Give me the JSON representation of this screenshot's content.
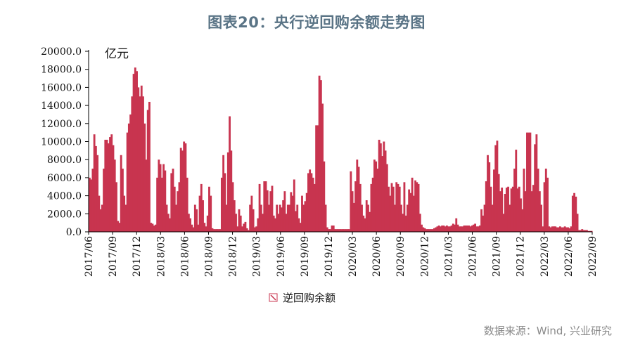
{
  "title": "图表20：央行逆回购余额走势图",
  "source": "数据来源：Wind, 兴业研究",
  "chart_data": {
    "type": "bar",
    "unit_label": "亿元",
    "ylim": [
      0,
      20000
    ],
    "yticks": [
      "20000.0",
      "18000.0",
      "16000.0",
      "14000.0",
      "12000.0",
      "10000.0",
      "8000.0",
      "6000.0",
      "4000.0",
      "2000.0",
      "0.0"
    ],
    "xlabels": [
      "2017/06",
      "2017/09",
      "2017/12",
      "2018/03",
      "2018/06",
      "2018/09",
      "2018/12",
      "2019/03",
      "2019/06",
      "2019/09",
      "2019/12",
      "2020/03",
      "2020/06",
      "2020/09",
      "2020/12",
      "2021/03",
      "2021/06",
      "2021/09",
      "2021/12",
      "2022/03",
      "2022/06",
      "2022/09"
    ],
    "x_start": "2017/06",
    "x_end": "2022/09",
    "series": [
      {
        "name": "逆回购余额",
        "color": "#c8344f",
        "values": [
          6000,
          5800,
          7000,
          10800,
          9500,
          8500,
          4000,
          2500,
          3000,
          7000,
          10200,
          10200,
          9800,
          10500,
          10800,
          9600,
          8000,
          5500,
          1200,
          1000,
          8500,
          7000,
          4000,
          3000,
          11000,
          12000,
          13000,
          15000,
          17500,
          18200,
          17800,
          16000,
          15000,
          16200,
          15000,
          12000,
          8000,
          13500,
          14400,
          1000,
          900,
          700,
          800,
          6000,
          8000,
          7500,
          6000,
          7500,
          6800,
          3000,
          2000,
          1500,
          6500,
          7000,
          5000,
          3000,
          4500,
          5500,
          9300,
          9000,
          10000,
          9800,
          6000,
          2000,
          1500,
          800,
          500,
          3000,
          2500,
          800,
          4000,
          5300,
          3500,
          1000,
          600,
          1800,
          5000,
          4000,
          400,
          300,
          300,
          300,
          300,
          300,
          6000,
          8500,
          6500,
          3000,
          8800,
          12800,
          9000,
          5500,
          3500,
          2000,
          600,
          2500,
          1800,
          600,
          900,
          1100,
          400,
          200,
          3000,
          4000,
          2500,
          500,
          600,
          1500,
          5300,
          3000,
          2000,
          5600,
          5600,
          4600,
          3000,
          4500,
          5100,
          1800,
          1500,
          3000,
          2000,
          3000,
          2700,
          3500,
          4500,
          2000,
          3000,
          3000,
          4400,
          4000,
          5800,
          2300,
          3000,
          1500,
          1000,
          4000,
          3000,
          3400,
          4300,
          6500,
          6900,
          6500,
          6000,
          5300,
          11800,
          11800,
          17300,
          16800,
          14200,
          7800,
          3000,
          500,
          300,
          300,
          700,
          700,
          300,
          300,
          300,
          300,
          300,
          300,
          300,
          300,
          300,
          300,
          6700,
          4500,
          3200,
          5600,
          8000,
          7200,
          5300,
          3000,
          1800,
          1500,
          3500,
          3000,
          2200,
          5300,
          6000,
          8000,
          7800,
          7000,
          10200,
          9800,
          8400,
          10000,
          9000,
          7500,
          5000,
          4000,
          5400,
          5000,
          3000,
          5500,
          5300,
          5000,
          3000,
          2000,
          5500,
          1800,
          3000,
          4700,
          4300,
          6000,
          4000,
          5700,
          5500,
          5300,
          2000,
          800,
          500,
          400,
          300,
          300,
          300,
          300,
          300,
          400,
          500,
          600,
          700,
          600,
          700,
          700,
          600,
          700,
          600,
          600,
          700,
          900,
          800,
          1500,
          800,
          600,
          600,
          600,
          700,
          700,
          700,
          700,
          600,
          700,
          800,
          900,
          600,
          600,
          700,
          2500,
          1800,
          3000,
          5600,
          8500,
          7700,
          5000,
          3000,
          6900,
          9600,
          10100,
          6400,
          4500,
          4900,
          2000,
          4200,
          4900,
          5000,
          3000,
          4800,
          5000,
          7000,
          9100,
          4800,
          5000,
          3700,
          2500,
          7000,
          4500,
          11000,
          11000,
          11000,
          4500,
          5200,
          9700,
          10800,
          7000,
          4500,
          3000,
          600,
          5500,
          7000,
          6000,
          600,
          500,
          600,
          600,
          600,
          500,
          500,
          600,
          500,
          500,
          600,
          500,
          500,
          400,
          600,
          4000,
          4300,
          3900,
          2000,
          200,
          200,
          300,
          200,
          200,
          200,
          100,
          100,
          100
        ]
      }
    ]
  }
}
